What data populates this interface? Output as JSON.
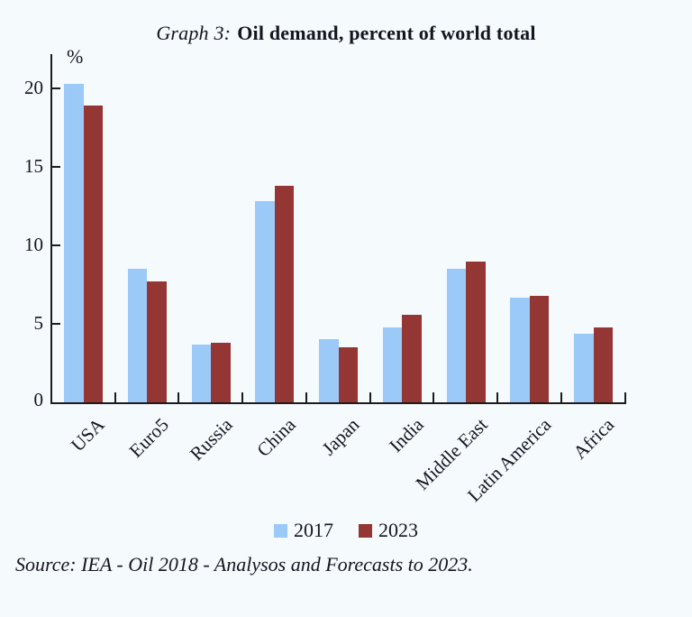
{
  "title": {
    "prefix": "Graph 3:",
    "main": "Oil demand, percent of world total"
  },
  "chart_data": {
    "type": "bar",
    "title": "Graph 3: Oil demand, percent of world total",
    "ylabel": "%",
    "xlabel": "",
    "ylim": [
      0,
      22
    ],
    "yticks": [
      0,
      5,
      10,
      15,
      20
    ],
    "grid": false,
    "legend_position": "bottom-center",
    "categories": [
      "USA",
      "Euro5",
      "Russia",
      "China",
      "Japan",
      "India",
      "Middle East",
      "Latin America",
      "Africa"
    ],
    "series": [
      {
        "name": "2017",
        "color": "#9bc9f8",
        "values": [
          20.3,
          8.5,
          3.7,
          12.8,
          4.0,
          4.8,
          8.5,
          6.7,
          4.4
        ]
      },
      {
        "name": "2023",
        "color": "#943634",
        "values": [
          18.9,
          7.7,
          3.8,
          13.8,
          3.5,
          5.6,
          9.0,
          6.8,
          4.8
        ]
      }
    ]
  },
  "source": "Source: IEA - Oil 2018 - Analysos and Forecasts to 2023.",
  "colors": {
    "background": "#f5fafd",
    "axis": "#1c1c1c",
    "text": "#15151f",
    "series_2017": "#9bc9f8",
    "series_2023": "#943634"
  }
}
